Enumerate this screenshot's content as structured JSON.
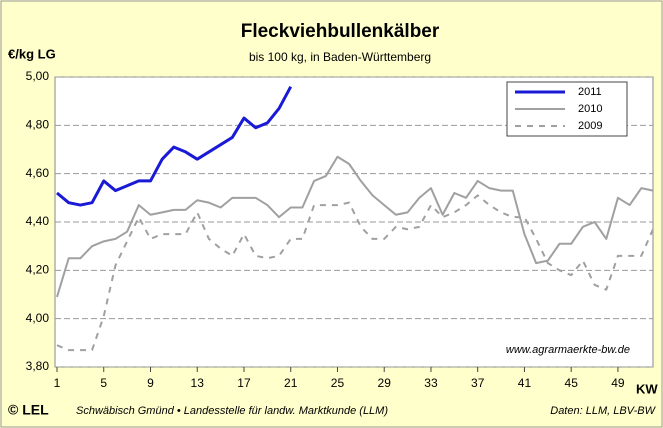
{
  "chart_data": {
    "type": "line",
    "title": "Fleckviehbullenkälber",
    "subtitle": "bis 100 kg, in Baden-Württemberg",
    "y_label": "€/kg LG",
    "x_label": "KW",
    "annotation": "www.agrarmaerkte-bw.de",
    "logo": "© LEL",
    "footer_left": "Schwäbisch Gmünd • Landesstelle für landw. Marktkunde (LLM)",
    "footer_right": "Daten: LLM, LBV-BW",
    "x": [
      1,
      2,
      3,
      4,
      5,
      6,
      7,
      8,
      9,
      10,
      11,
      12,
      13,
      14,
      15,
      16,
      17,
      18,
      19,
      20,
      21,
      22,
      23,
      24,
      25,
      26,
      27,
      28,
      29,
      30,
      31,
      32,
      33,
      34,
      35,
      36,
      37,
      38,
      39,
      40,
      41,
      42,
      43,
      44,
      45,
      46,
      47,
      48,
      49,
      50,
      51,
      52
    ],
    "xlim": [
      1,
      52
    ],
    "xticks": [
      1,
      5,
      9,
      13,
      17,
      21,
      25,
      29,
      33,
      37,
      41,
      45,
      49
    ],
    "ylim": [
      3.8,
      5.0
    ],
    "yticks": [
      {
        "value": 3.8,
        "label": "3,80"
      },
      {
        "value": 4.0,
        "label": "4,00"
      },
      {
        "value": 4.2,
        "label": "4,20"
      },
      {
        "value": 4.4,
        "label": "4,40"
      },
      {
        "value": 4.6,
        "label": "4,60"
      },
      {
        "value": 4.8,
        "label": "4,80"
      },
      {
        "value": 5.0,
        "label": "5,00"
      }
    ],
    "grid": true,
    "legend": "top-right",
    "series": [
      {
        "name": "2011",
        "color": "#1a1ad6",
        "dash": false,
        "width": 3,
        "values": [
          4.52,
          4.48,
          4.47,
          4.48,
          4.57,
          4.53,
          4.55,
          4.57,
          4.57,
          4.66,
          4.71,
          4.69,
          4.66,
          4.69,
          4.72,
          4.75,
          4.83,
          4.79,
          4.81,
          4.87,
          4.96,
          null,
          null,
          null,
          null,
          null,
          null,
          null,
          null,
          null,
          null,
          null,
          null,
          null,
          null,
          null,
          null,
          null,
          null,
          null,
          null,
          null,
          null,
          null,
          null,
          null,
          null,
          null,
          null,
          null,
          null,
          null
        ]
      },
      {
        "name": "2010",
        "color": "#a0a0a0",
        "dash": false,
        "width": 2,
        "values": [
          4.09,
          4.25,
          4.25,
          4.3,
          4.32,
          4.33,
          4.36,
          4.47,
          4.43,
          4.44,
          4.45,
          4.45,
          4.49,
          4.48,
          4.46,
          4.5,
          4.5,
          4.5,
          4.47,
          4.42,
          4.46,
          4.46,
          4.57,
          4.59,
          4.67,
          4.64,
          4.57,
          4.51,
          4.47,
          4.43,
          4.44,
          4.5,
          4.54,
          4.43,
          4.52,
          4.5,
          4.57,
          4.54,
          4.53,
          4.53,
          4.35,
          4.23,
          4.24,
          4.31,
          4.31,
          4.38,
          4.4,
          4.33,
          4.5,
          4.47,
          4.54,
          4.53
        ]
      },
      {
        "name": "2009",
        "color": "#a0a0a0",
        "dash": true,
        "width": 2,
        "values": [
          3.89,
          3.87,
          3.87,
          3.87,
          4.01,
          4.22,
          4.32,
          4.42,
          4.33,
          4.35,
          4.35,
          4.35,
          4.44,
          4.33,
          4.29,
          4.26,
          4.35,
          4.26,
          4.25,
          4.26,
          4.33,
          4.33,
          4.47,
          4.47,
          4.47,
          4.48,
          4.38,
          4.33,
          4.33,
          4.38,
          4.37,
          4.38,
          4.47,
          4.42,
          4.44,
          4.47,
          4.51,
          4.47,
          4.44,
          4.42,
          4.42,
          4.33,
          4.23,
          4.2,
          4.18,
          4.24,
          4.14,
          4.12,
          4.26,
          4.26,
          4.26,
          4.37
        ]
      }
    ]
  }
}
